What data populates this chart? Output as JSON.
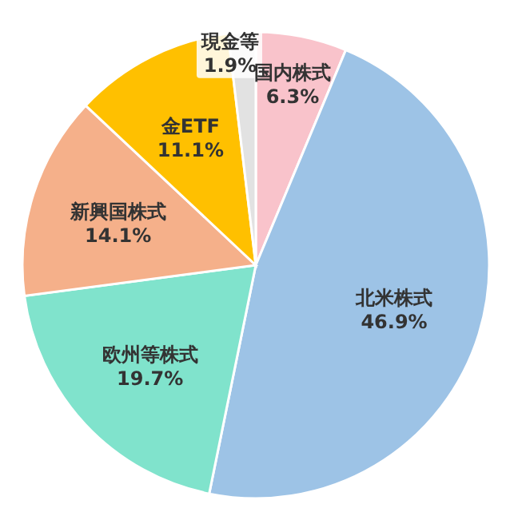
{
  "chart_data": {
    "type": "pie",
    "categories": [
      "国内株式",
      "北米株式",
      "欧州等株式",
      "新興国株式",
      "金ETF",
      "現金等"
    ],
    "values": [
      6.3,
      46.9,
      19.7,
      14.1,
      11.1,
      1.9
    ],
    "colors": [
      "#f9c3cb",
      "#9dc3e6",
      "#80e3cc",
      "#f5b08a",
      "#ffc000",
      "#e2e2e2"
    ],
    "value_labels": [
      "6.3%",
      "46.9%",
      "19.7%",
      "14.1%",
      "11.1%",
      "1.9%"
    ]
  }
}
